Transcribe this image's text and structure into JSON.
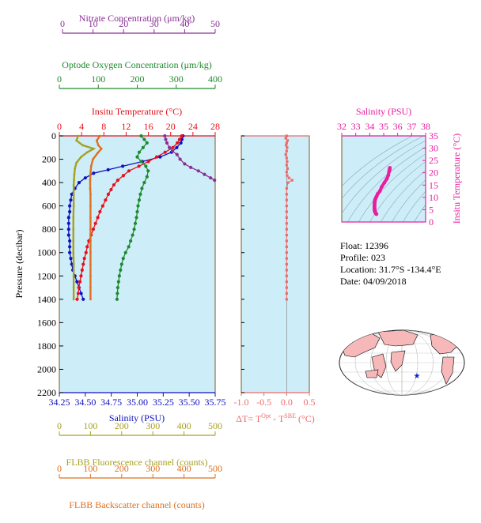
{
  "colors": {
    "nitrate": "#8b2f97",
    "oxygen": "#1e8a2e",
    "temperature": "#e8101a",
    "salinity": "#1010c0",
    "fluorescence": "#a8a020",
    "backscatter": "#e0701e",
    "delta_t": "#f06a6a",
    "ts_curve": "#e81ea0",
    "plot_bg": "#cdeef8",
    "axis": "#7a5a18"
  },
  "axes_labels": {
    "nitrate": "Nitrate Concentration (μm/kg)",
    "oxygen": "Optode Oxygen Concentration (μm/kg)",
    "temperature": "Insitu Temperature (°C)",
    "salinity": "Salinity (PSU)",
    "pressure": "Pressure (decibar)",
    "delta_t": "ΔT= T",
    "delta_t_sup1": "Opt",
    "delta_t_mid": " - T",
    "delta_t_sup2": "SBE",
    "delta_t_end": " (°C)",
    "fluorescence": "FLBB Fluorescence channel (counts)",
    "backscatter": "FLBB Backscatter channel (counts)",
    "ts_salinity": "Salinity (PSU)",
    "ts_temperature": "Insitu Temperature (°C)"
  },
  "float_info": {
    "float": "Float:  12396",
    "profile": "Profile:  023",
    "location": "Location:  31.7°S  -134.4°E",
    "date": "Date:  04/09/2018"
  },
  "chart_data": [
    {
      "type": "line",
      "name": "main-profile",
      "yaxis": {
        "label": "Pressure (decibar)",
        "range": [
          0,
          2200
        ],
        "inverted": true,
        "ticks": [
          0,
          200,
          400,
          600,
          800,
          1000,
          1200,
          1400,
          1600,
          1800,
          2000,
          2200
        ]
      },
      "x_axes": {
        "salinity": {
          "range": [
            34.25,
            35.75
          ],
          "ticks": [
            "34.25",
            "34.50",
            "34.75",
            "35.00",
            "35.25",
            "35.50",
            "35.75"
          ]
        },
        "temperature": {
          "range": [
            0,
            28
          ],
          "ticks": [
            "0",
            "4",
            "8",
            "12",
            "16",
            "20",
            "24",
            "28"
          ]
        },
        "oxygen": {
          "range": [
            0,
            400
          ],
          "ticks": [
            "0",
            "100",
            "200",
            "300",
            "400"
          ]
        },
        "nitrate": {
          "range": [
            0,
            50
          ],
          "ticks": [
            "0",
            "10",
            "20",
            "30",
            "40",
            "50"
          ]
        },
        "fluorescence": {
          "range": [
            0,
            500
          ],
          "ticks": [
            "0",
            "100",
            "200",
            "300",
            "400",
            "500"
          ]
        },
        "backscatter": {
          "range": [
            0,
            500
          ],
          "ticks": [
            "0",
            "100",
            "200",
            "300",
            "400",
            "500"
          ]
        }
      },
      "series": [
        {
          "key": "salinity",
          "axis": "salinity",
          "points": [
            [
              35.44,
              0
            ],
            [
              35.43,
              30
            ],
            [
              35.42,
              60
            ],
            [
              35.38,
              100
            ],
            [
              35.33,
              140
            ],
            [
              35.22,
              180
            ],
            [
              35.05,
              220
            ],
            [
              34.86,
              260
            ],
            [
              34.72,
              290
            ],
            [
              34.58,
              320
            ],
            [
              34.5,
              360
            ],
            [
              34.44,
              400
            ],
            [
              34.4,
              450
            ],
            [
              34.37,
              500
            ],
            [
              34.36,
              550
            ],
            [
              34.35,
              600
            ],
            [
              34.35,
              650
            ],
            [
              34.34,
              700
            ],
            [
              34.34,
              750
            ],
            [
              34.34,
              800
            ],
            [
              34.34,
              850
            ],
            [
              34.35,
              900
            ],
            [
              34.35,
              950
            ],
            [
              34.35,
              1000
            ],
            [
              34.36,
              1050
            ],
            [
              34.37,
              1100
            ],
            [
              34.38,
              1150
            ],
            [
              34.4,
              1200
            ],
            [
              34.42,
              1250
            ],
            [
              34.44,
              1300
            ],
            [
              34.46,
              1350
            ],
            [
              34.48,
              1400
            ]
          ]
        },
        {
          "key": "temperature",
          "axis": "temperature",
          "points": [
            [
              22.0,
              0
            ],
            [
              21.6,
              30
            ],
            [
              21.2,
              60
            ],
            [
              20.4,
              100
            ],
            [
              19.0,
              140
            ],
            [
              17.5,
              180
            ],
            [
              16.0,
              220
            ],
            [
              14.3,
              260
            ],
            [
              12.5,
              300
            ],
            [
              11.5,
              340
            ],
            [
              10.5,
              380
            ],
            [
              9.8,
              420
            ],
            [
              9.3,
              460
            ],
            [
              8.8,
              500
            ],
            [
              8.3,
              550
            ],
            [
              7.8,
              600
            ],
            [
              7.3,
              650
            ],
            [
              6.9,
              700
            ],
            [
              6.5,
              750
            ],
            [
              6.1,
              800
            ],
            [
              5.7,
              850
            ],
            [
              5.3,
              900
            ],
            [
              5.0,
              950
            ],
            [
              4.8,
              1000
            ],
            [
              4.5,
              1050
            ],
            [
              4.3,
              1100
            ],
            [
              4.1,
              1150
            ],
            [
              3.9,
              1200
            ],
            [
              3.7,
              1250
            ],
            [
              3.5,
              1300
            ],
            [
              3.4,
              1350
            ],
            [
              3.2,
              1400
            ]
          ]
        },
        {
          "key": "oxygen",
          "axis": "oxygen",
          "points": [
            [
              210,
              0
            ],
            [
              218,
              30
            ],
            [
              225,
              60
            ],
            [
              215,
              100
            ],
            [
              205,
              140
            ],
            [
              200,
              180
            ],
            [
              210,
              220
            ],
            [
              222,
              260
            ],
            [
              228,
              300
            ],
            [
              225,
              350
            ],
            [
              218,
              400
            ],
            [
              212,
              450
            ],
            [
              208,
              500
            ],
            [
              205,
              550
            ],
            [
              202,
              600
            ],
            [
              200,
              650
            ],
            [
              198,
              700
            ],
            [
              195,
              750
            ],
            [
              192,
              800
            ],
            [
              188,
              850
            ],
            [
              183,
              900
            ],
            [
              178,
              950
            ],
            [
              170,
              1000
            ],
            [
              164,
              1050
            ],
            [
              160,
              1100
            ],
            [
              157,
              1150
            ],
            [
              154,
              1200
            ],
            [
              152,
              1250
            ],
            [
              150,
              1300
            ],
            [
              149,
              1350
            ],
            [
              148,
              1400
            ]
          ]
        },
        {
          "key": "nitrate",
          "axis": "nitrate",
          "points": [
            [
              33.5,
              0
            ],
            [
              33.8,
              30
            ],
            [
              34.2,
              60
            ],
            [
              35.0,
              100
            ],
            [
              36.0,
              130
            ],
            [
              37.5,
              160
            ],
            [
              38.5,
              200
            ],
            [
              40.0,
              240
            ],
            [
              42.0,
              270
            ],
            [
              44.5,
              300
            ],
            [
              46.5,
              330
            ],
            [
              48.5,
              360
            ],
            [
              49.8,
              380
            ]
          ]
        },
        {
          "key": "fluorescence",
          "axis": "fluorescence",
          "points": [
            [
              60,
              0
            ],
            [
              55,
              40
            ],
            [
              75,
              80
            ],
            [
              110,
              110
            ],
            [
              90,
              140
            ],
            [
              70,
              180
            ],
            [
              55,
              230
            ],
            [
              50,
              280
            ],
            [
              48,
              330
            ],
            [
              47,
              380
            ],
            [
              46,
              420
            ],
            [
              46,
              500
            ],
            [
              46,
              600
            ],
            [
              45,
              700
            ],
            [
              45,
              800
            ],
            [
              45,
              900
            ],
            [
              45,
              1000
            ],
            [
              46,
              1100
            ],
            [
              46,
              1200
            ],
            [
              46,
              1300
            ],
            [
              46,
              1400
            ]
          ]
        },
        {
          "key": "backscatter",
          "axis": "backscatter",
          "points": [
            [
              130,
              0
            ],
            [
              120,
              40
            ],
            [
              125,
              80
            ],
            [
              135,
              110
            ],
            [
              122,
              150
            ],
            [
              108,
              200
            ],
            [
              102,
              260
            ],
            [
              100,
              320
            ],
            [
              99,
              380
            ],
            [
              99,
              450
            ],
            [
              100,
              500
            ],
            [
              100,
              600
            ],
            [
              100,
              700
            ],
            [
              100,
              800
            ],
            [
              100,
              900
            ],
            [
              100,
              1000
            ],
            [
              100,
              1100
            ],
            [
              100,
              1200
            ],
            [
              100,
              1300
            ],
            [
              100,
              1400
            ]
          ]
        }
      ]
    },
    {
      "type": "scatter",
      "name": "delta-t-profile",
      "x_axis": {
        "range": [
          -1.0,
          0.5
        ],
        "ticks": [
          "-1.0",
          "-0.5",
          "0.0",
          "0.5"
        ]
      },
      "yaxis": {
        "range": [
          0,
          2200
        ],
        "inverted": true
      },
      "series": [
        {
          "key": "delta_t",
          "points": [
            [
              0.0,
              0
            ],
            [
              -0.02,
              20
            ],
            [
              0.02,
              40
            ],
            [
              0.0,
              60
            ],
            [
              -0.01,
              80
            ],
            [
              0.01,
              100
            ],
            [
              0.0,
              130
            ],
            [
              -0.02,
              160
            ],
            [
              0.0,
              190
            ],
            [
              0.01,
              220
            ],
            [
              0.0,
              250
            ],
            [
              0.02,
              280
            ],
            [
              0.0,
              310
            ],
            [
              0.01,
              340
            ],
            [
              0.05,
              360
            ],
            [
              0.12,
              380
            ],
            [
              0.03,
              400
            ],
            [
              0.0,
              450
            ],
            [
              0.0,
              500
            ],
            [
              0.0,
              550
            ],
            [
              0.0,
              600
            ],
            [
              0.0,
              650
            ],
            [
              0.0,
              700
            ],
            [
              0.0,
              750
            ],
            [
              0.0,
              800
            ],
            [
              0.0,
              850
            ],
            [
              0.0,
              900
            ],
            [
              0.0,
              950
            ],
            [
              0.0,
              1000
            ],
            [
              0.0,
              1050
            ],
            [
              0.0,
              1100
            ],
            [
              0.0,
              1150
            ],
            [
              0.0,
              1200
            ],
            [
              0.0,
              1250
            ],
            [
              0.0,
              1300
            ],
            [
              0.0,
              1350
            ],
            [
              0.0,
              1400
            ]
          ]
        }
      ]
    },
    {
      "type": "scatter",
      "name": "ts-diagram",
      "x_axis": {
        "label": "Salinity (PSU)",
        "range": [
          32,
          38
        ],
        "ticks": [
          "32",
          "33",
          "34",
          "35",
          "36",
          "37",
          "38"
        ]
      },
      "y_axis": {
        "label": "Insitu Temperature (°C)",
        "range": [
          0,
          35
        ],
        "ticks": [
          "0",
          "5",
          "10",
          "15",
          "20",
          "25",
          "30",
          "35"
        ]
      },
      "series": [
        {
          "key": "ts",
          "points": [
            [
              35.44,
              22.0
            ],
            [
              35.43,
              21.6
            ],
            [
              35.42,
              21.2
            ],
            [
              35.38,
              20.4
            ],
            [
              35.33,
              19.0
            ],
            [
              35.22,
              17.5
            ],
            [
              35.05,
              16.0
            ],
            [
              34.86,
              14.3
            ],
            [
              34.72,
              12.5
            ],
            [
              34.58,
              11.5
            ],
            [
              34.5,
              10.5
            ],
            [
              34.44,
              9.8
            ],
            [
              34.4,
              9.3
            ],
            [
              34.37,
              8.8
            ],
            [
              34.36,
              8.3
            ],
            [
              34.35,
              7.8
            ],
            [
              34.35,
              7.3
            ],
            [
              34.34,
              6.9
            ],
            [
              34.34,
              6.5
            ],
            [
              34.34,
              6.1
            ],
            [
              34.34,
              5.7
            ],
            [
              34.35,
              5.3
            ],
            [
              34.35,
              5.0
            ],
            [
              34.35,
              4.8
            ],
            [
              34.36,
              4.5
            ],
            [
              34.37,
              4.3
            ],
            [
              34.38,
              4.1
            ],
            [
              34.4,
              3.9
            ],
            [
              34.42,
              3.7
            ],
            [
              34.44,
              3.5
            ],
            [
              34.46,
              3.4
            ],
            [
              34.48,
              3.2
            ]
          ]
        }
      ]
    }
  ],
  "map": {
    "marker": "★"
  }
}
